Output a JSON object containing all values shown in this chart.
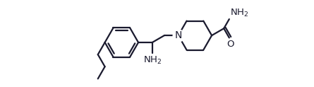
{
  "bg_color": "#ffffff",
  "line_color": "#1a1a2e",
  "line_width": 1.6,
  "font_size_label": 9.5
}
